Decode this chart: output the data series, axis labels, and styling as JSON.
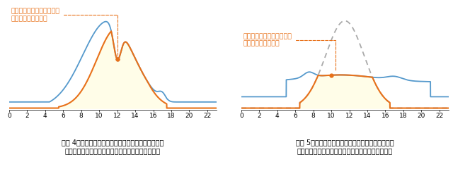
{
  "fig4_title": "【図 4】工場稼働日における出力制御システム付きの\n自家消費システムの１日の電力の推移（イメージ）",
  "fig5_title": "【図 5】工場休日における出力制御システム付きの\n自家消費システムの１日の電力の推移（イメージ）",
  "annotation_text": "消費電力を超えないように\n発電電力を追従制御",
  "xticks": [
    0,
    2,
    4,
    6,
    8,
    10,
    12,
    14,
    16,
    18,
    20,
    22
  ],
  "orange_color": "#E8711A",
  "blue_color": "#5599CC",
  "gray_dash_color": "#AAAAAA",
  "fill_color": "#FFFDE8",
  "bg_color": "#FFFFFF",
  "title_fontsize": 7.0,
  "annotation_fontsize": 6.8
}
